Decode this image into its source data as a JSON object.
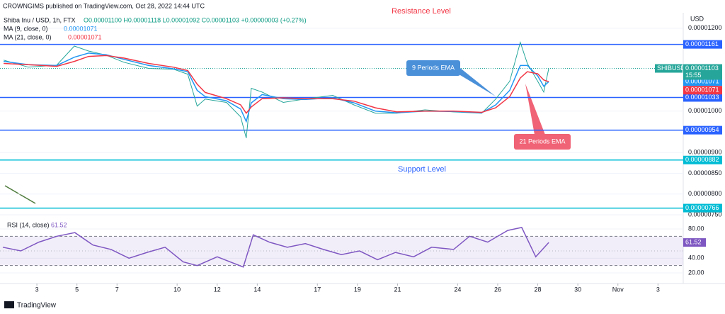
{
  "header": {
    "publisher": "CROWNGIMS published on TradingView.com, Oct 28, 2022 14:44 UTC",
    "footer": "TradingView"
  },
  "chart_data": [
    {
      "type": "line",
      "title": "Shiba Inu / USD, 1h, FTX",
      "ohlc": "O0.00001100 H0.00001118 L0.00001092 C0.00001103 +0.00000003 (+0.27%)",
      "axis_label": "USD",
      "x": [
        1.34,
        2.58,
        3.99,
        4.87,
        5.58,
        6.46,
        7.34,
        8.58,
        9.82,
        10.53,
        11.0,
        11.4,
        12.46,
        13.17,
        13.45,
        13.7,
        14.24,
        15.3,
        16.36,
        17.77,
        18.83,
        19.9,
        20.96,
        22.37,
        23.78,
        25.2,
        25.9,
        26.6,
        27.13,
        27.48,
        28.0,
        28.3,
        28.55
      ],
      "series": [
        {
          "name": "Price",
          "color": "#26a69a",
          "values": [
            1.123e-05,
            1.106e-05,
            1.111e-05,
            1.157e-05,
            1.145e-05,
            1.135e-05,
            1.118e-05,
            1.103e-05,
            1.101e-05,
            1.089e-05,
            1.012e-05,
            1.029e-05,
            1.021e-05,
            9.86e-06,
            9.35e-06,
            1.055e-05,
            1.046e-05,
            1.021e-05,
            1.029e-05,
            1.038e-05,
            1.015e-05,
            9.95e-06,
            9.95e-06,
            1.003e-05,
            9.98e-06,
            9.95e-06,
            1.029e-05,
            1.072e-05,
            1.166e-05,
            1.115e-05,
            1.072e-05,
            1.046e-05,
            1.103e-05
          ]
        },
        {
          "name": "MA (9, close, 0)",
          "color": "#2196f3",
          "last_label": "0.00001071",
          "values": [
            1.12e-05,
            1.112e-05,
            1.11e-05,
            1.13e-05,
            1.14e-05,
            1.136e-05,
            1.125e-05,
            1.11e-05,
            1.102e-05,
            1.095e-05,
            1.05e-05,
            1.035e-05,
            1.025e-05,
            1.005e-05,
            9.75e-06,
            1.02e-05,
            1.04e-05,
            1.03e-05,
            1.028e-05,
            1.032e-05,
            1.02e-05,
            1e-05,
            9.96e-06,
            1e-05,
            9.99e-06,
            9.96e-06,
            1.015e-05,
            1.05e-05,
            1.11e-05,
            1.11e-05,
            1.085e-05,
            1.06e-05,
            1.071e-05
          ]
        },
        {
          "name": "MA (21, close, 0)",
          "color": "#f23645",
          "last_label": "0.00001071",
          "values": [
            1.115e-05,
            1.112e-05,
            1.108e-05,
            1.12e-05,
            1.132e-05,
            1.134e-05,
            1.128e-05,
            1.115e-05,
            1.106e-05,
            1.098e-05,
            1.065e-05,
            1.045e-05,
            1.03e-05,
            1.015e-05,
            9.95e-06,
            1.01e-05,
            1.03e-05,
            1.032e-05,
            1.03e-05,
            1.03e-05,
            1.024e-05,
            1.008e-05,
            9.98e-06,
            1e-05,
            1e-05,
            9.97e-06,
            1.008e-05,
            1.035e-05,
            1.08e-05,
            1.095e-05,
            1.09e-05,
            1.075e-05,
            1.071e-05
          ]
        }
      ],
      "last_price": {
        "value": 1.103e-05,
        "label": "0.00001103",
        "symbol": "SHIBUSD",
        "countdown": "15:55"
      },
      "levels": [
        {
          "value": 1.161e-05,
          "label": "0.00001161",
          "color": "#2962ff"
        },
        {
          "value": 1.033e-05,
          "label": "0.00001033",
          "color": "#2962ff"
        },
        {
          "value": 9.54e-06,
          "label": "0.00000954",
          "color": "#2962ff"
        },
        {
          "value": 8.82e-06,
          "label": "0.00000882",
          "color": "#00bcd4"
        },
        {
          "value": 7.66e-06,
          "label": "0.00000766",
          "color": "#00bcd4"
        }
      ],
      "annotations": [
        "Resistance Level",
        "Support Level",
        "9 Periods EMA",
        "21 Periods EMA"
      ],
      "xlim": [
        1.16,
        35.26
      ],
      "xticks": [
        3,
        5,
        7,
        10,
        12,
        14,
        17,
        19,
        21,
        24,
        26,
        28,
        30,
        {
          "value": 32,
          "label": "Nov"
        },
        {
          "value": 34,
          "label": "3"
        }
      ],
      "ylim": [
        7.55e-06,
        1.251e-05
      ],
      "yticks": [
        {
          "value": 1.2e-05,
          "label": "0.00001200"
        },
        {
          "value": 1e-05,
          "label": "0.00001000"
        },
        {
          "value": 9e-06,
          "label": "0.00000900"
        },
        {
          "value": 8.5e-06,
          "label": "0.00000850"
        },
        {
          "value": 8e-06,
          "label": "0.00000800"
        },
        {
          "value": 7.5e-06,
          "label": "0.00000750"
        }
      ]
    },
    {
      "type": "line",
      "x": [
        1.3,
        2.2,
        3.1,
        4.0,
        4.9,
        5.8,
        6.7,
        7.6,
        8.5,
        9.4,
        10.3,
        11.0,
        12.0,
        13.3,
        13.8,
        14.6,
        15.5,
        16.4,
        17.3,
        18.2,
        19.1,
        20.0,
        20.9,
        21.8,
        22.7,
        23.8,
        24.6,
        25.5,
        26.5,
        27.2,
        27.9,
        28.55
      ],
      "series": [
        {
          "name": "RSI (14, close)",
          "color": "#7e57c2",
          "values": [
            55,
            50,
            62,
            70,
            75,
            58,
            52,
            40,
            48,
            55,
            35,
            30,
            42,
            28,
            72,
            62,
            55,
            60,
            52,
            45,
            50,
            38,
            48,
            42,
            55,
            52,
            70,
            62,
            78,
            82,
            42,
            61.52
          ]
        }
      ],
      "band": [
        30,
        70
      ],
      "middle": 50,
      "xlim": [
        1.16,
        35.26
      ],
      "ylim": [
        5.5,
        97.4
      ],
      "yticks": [
        {
          "value": 80,
          "label": "80.00"
        },
        {
          "value": 40,
          "label": "40.00"
        },
        {
          "value": 20,
          "label": "20.00"
        }
      ]
    }
  ]
}
